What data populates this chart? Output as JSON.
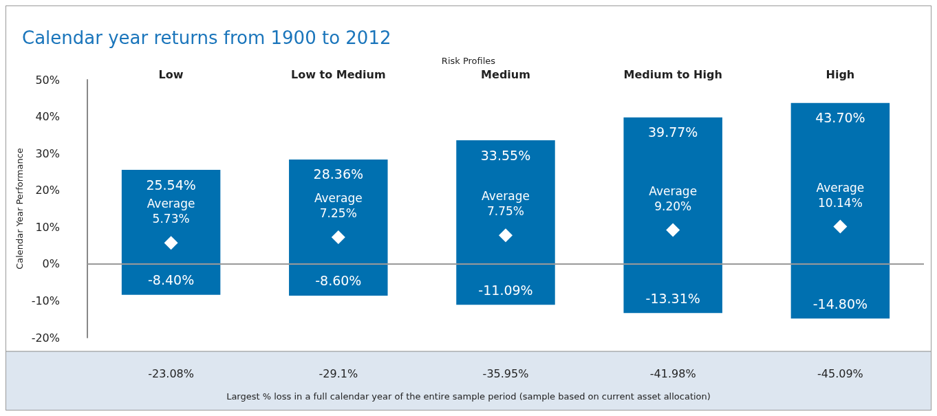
{
  "chart_data": {
    "type": "bar",
    "stacked": true,
    "title": "Calendar year returns from 1900 to 2012",
    "subtitle": "Risk Profiles",
    "ylabel": "Calendar Year Performance",
    "categories": [
      "Low",
      "Low to Medium",
      "Medium",
      "Medium to High",
      "High"
    ],
    "series": [
      {
        "color": "#0070b0",
        "values": [
          25.54,
          28.36,
          33.55,
          39.77,
          43.7
        ],
        "value_labels": [
          "25.54%",
          "28.36%",
          "33.55%",
          "39.77%",
          "43.70%"
        ]
      },
      {
        "color": "#0070b0",
        "values": [
          -8.4,
          -8.6,
          -11.09,
          -13.31,
          -14.8
        ],
        "value_labels": [
          "-8.40%",
          "-8.60%",
          "-11.09%",
          "-13.31%",
          "-14.80%"
        ]
      },
      {
        "type": "scatter",
        "color": "#ffffff",
        "marker": "diamond",
        "x": [
          "Low",
          "Low to Medium",
          "Medium",
          "Medium to High",
          "High"
        ],
        "values": [
          5.73,
          7.25,
          7.75,
          9.2,
          10.14
        ],
        "value_labels": [
          "Average\n5.73%",
          "Average\n7.25%",
          "Average\n7.75%",
          "Average\n9.20%",
          "Average\n10.14%"
        ]
      }
    ],
    "ylim": [
      -20,
      50
    ],
    "yticks": [
      {
        "value": -20,
        "label": "-20%"
      },
      {
        "value": -10,
        "label": "-10%"
      },
      {
        "value": 0,
        "label": "0%"
      },
      {
        "value": 10,
        "label": "10%"
      },
      {
        "value": 20,
        "label": "20%"
      },
      {
        "value": 30,
        "label": "30%"
      },
      {
        "value": 40,
        "label": "40%"
      },
      {
        "value": 50,
        "label": "50%"
      }
    ],
    "ref_lines": [
      {
        "axis": "y",
        "value": 0,
        "color": "#999999"
      }
    ],
    "grid": false,
    "annotations": [
      "-23.08%",
      "-29.1%",
      "-35.95%",
      "-41.98%",
      "-45.09%",
      "Largest % loss in a full calendar year of the entire sample period (sample based on current asset allocation)"
    ]
  }
}
